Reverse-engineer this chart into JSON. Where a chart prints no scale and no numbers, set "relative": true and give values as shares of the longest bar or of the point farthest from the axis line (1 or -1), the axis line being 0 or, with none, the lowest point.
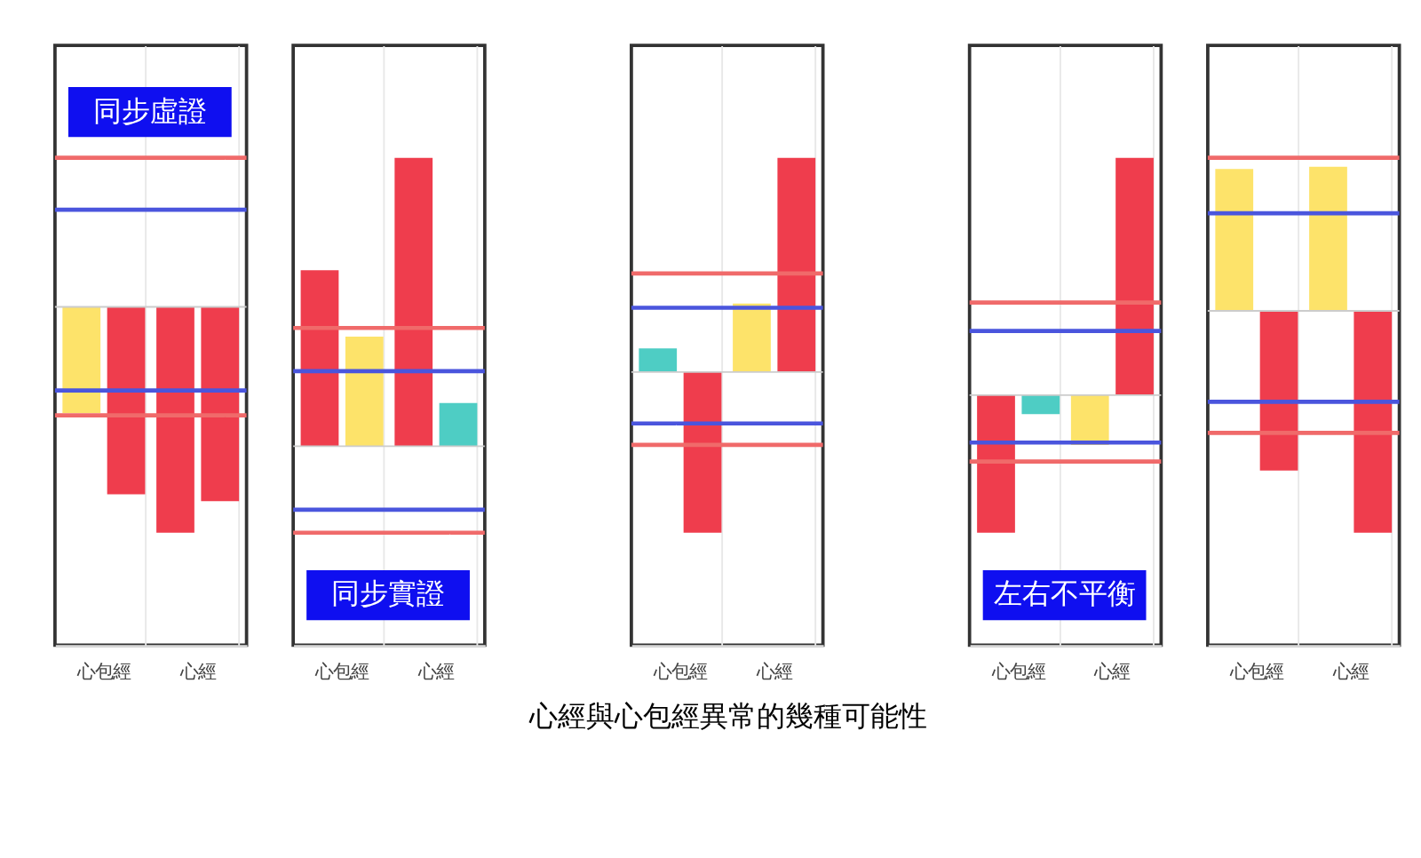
{
  "chart_data": [
    {
      "type": "bar",
      "relative": true,
      "categories": [
        "心包經",
        "心經"
      ],
      "annotations": [
        "同步虛證"
      ],
      "series": [
        {
          "colors": [
            "#fde36a",
            "#ef3d4d"
          ],
          "values": [
            -0.47,
            -1
          ]
        },
        {
          "colors": [
            "#ef3d4d",
            "#ef3d4d"
          ],
          "values": [
            -0.83,
            -0.86
          ]
        }
      ],
      "ref_lines": [
        {
          "axis": "y",
          "value": 0.66,
          "color": "#f06a6a"
        },
        {
          "axis": "y",
          "value": 0.43,
          "color": "#4a55dd"
        },
        {
          "axis": "y",
          "value": -0.37,
          "color": "#4a55dd"
        },
        {
          "axis": "y",
          "value": -0.48,
          "color": "#f06a6a"
        }
      ]
    },
    {
      "type": "bar",
      "relative": true,
      "categories": [
        "心包經",
        "心經"
      ],
      "annotations": [
        "同步實證"
      ],
      "series": [
        {
          "colors": [
            "#ef3d4d",
            "#ef3d4d"
          ],
          "values": [
            0.61,
            1
          ]
        },
        {
          "colors": [
            "#fde36a",
            "#4ecdc4"
          ],
          "values": [
            0.38,
            0.15
          ]
        }
      ],
      "ref_lines": [
        {
          "axis": "y",
          "value": 0.41,
          "color": "#f06a6a"
        },
        {
          "axis": "y",
          "value": 0.26,
          "color": "#4a55dd"
        },
        {
          "axis": "y",
          "value": -0.22,
          "color": "#4a55dd"
        },
        {
          "axis": "y",
          "value": -0.3,
          "color": "#f06a6a"
        }
      ]
    },
    {
      "type": "bar",
      "relative": true,
      "categories": [
        "心包經",
        "心經"
      ],
      "xlabel": "心經與心包經異常的幾種可能性",
      "series": [
        {
          "colors": [
            "#4ecdc4",
            "#fde36a"
          ],
          "values": [
            0.11,
            0.32
          ]
        },
        {
          "colors": [
            "#ef3d4d",
            "#ef3d4d"
          ],
          "values": [
            -0.75,
            1
          ]
        }
      ],
      "ref_lines": [
        {
          "axis": "y",
          "value": 0.46,
          "color": "#f06a6a"
        },
        {
          "axis": "y",
          "value": 0.3,
          "color": "#4a55dd"
        },
        {
          "axis": "y",
          "value": -0.24,
          "color": "#4a55dd"
        },
        {
          "axis": "y",
          "value": -0.34,
          "color": "#f06a6a"
        }
      ]
    },
    {
      "type": "bar",
      "relative": true,
      "categories": [
        "心包經",
        "心經"
      ],
      "annotations": [
        "左右不平衡"
      ],
      "series": [
        {
          "colors": [
            "#ef3d4d",
            "#fde36a"
          ],
          "values": [
            -0.58,
            -0.21
          ]
        },
        {
          "colors": [
            "#4ecdc4",
            "#ef3d4d"
          ],
          "values": [
            -0.08,
            1
          ]
        }
      ],
      "ref_lines": [
        {
          "axis": "y",
          "value": 0.39,
          "color": "#f06a6a"
        },
        {
          "axis": "y",
          "value": 0.27,
          "color": "#4a55dd"
        },
        {
          "axis": "y",
          "value": -0.2,
          "color": "#4a55dd"
        },
        {
          "axis": "y",
          "value": -0.28,
          "color": "#f06a6a"
        }
      ]
    },
    {
      "type": "bar",
      "relative": true,
      "categories": [
        "心包經",
        "心經"
      ],
      "series": [
        {
          "colors": [
            "#fde36a",
            "#fde36a"
          ],
          "values": [
            0.64,
            0.65
          ]
        },
        {
          "colors": [
            "#ef3d4d",
            "#ef3d4d"
          ],
          "values": [
            -0.72,
            -1
          ]
        }
      ],
      "ref_lines": [
        {
          "axis": "y",
          "value": 0.69,
          "color": "#f06a6a"
        },
        {
          "axis": "y",
          "value": 0.44,
          "color": "#4a55dd"
        },
        {
          "axis": "y",
          "value": -0.41,
          "color": "#4a55dd"
        },
        {
          "axis": "y",
          "value": -0.55,
          "color": "#f06a6a"
        }
      ]
    }
  ]
}
